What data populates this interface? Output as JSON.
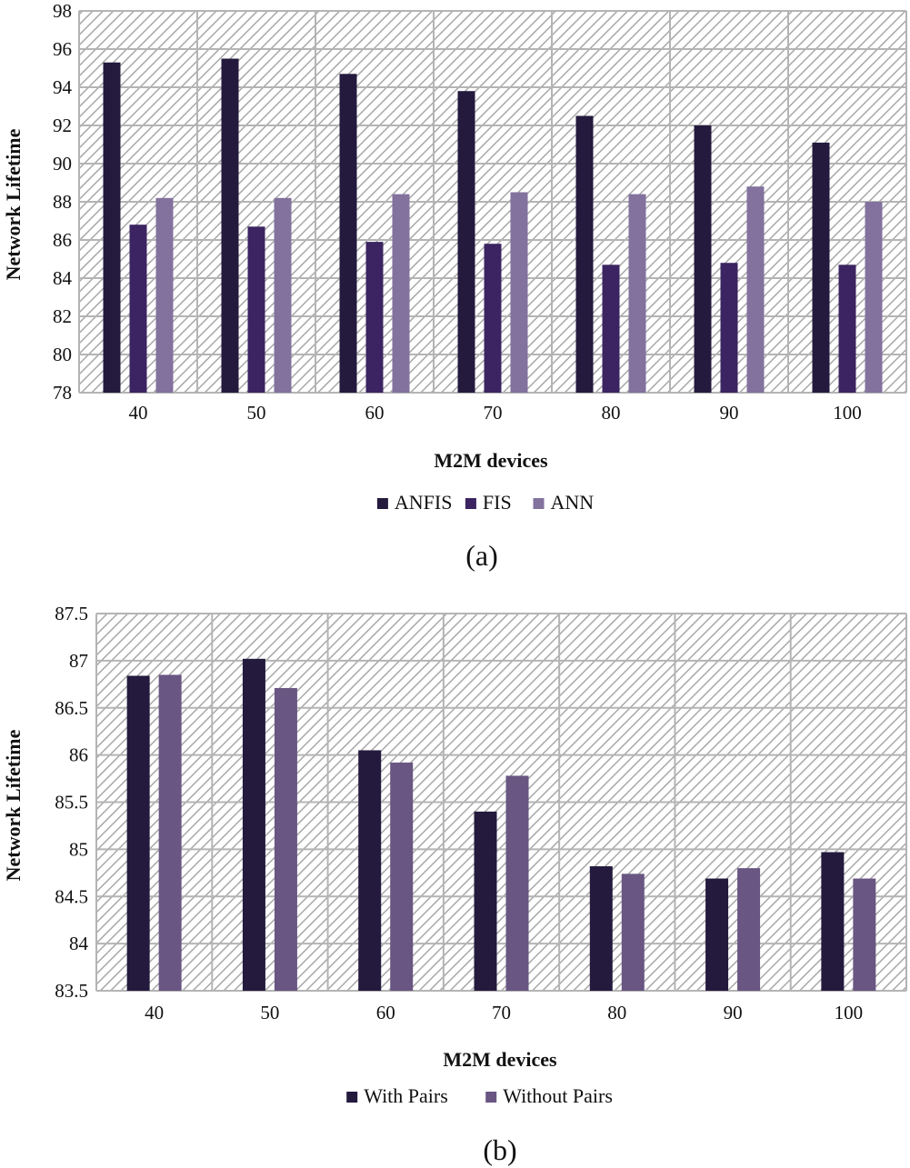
{
  "chart_data": [
    {
      "type": "bar",
      "caption": "(a)",
      "categories": [
        "40",
        "50",
        "60",
        "70",
        "80",
        "90",
        "100"
      ],
      "series": [
        {
          "name": "ANFIS",
          "color": "#241a3d",
          "values": [
            95.3,
            95.5,
            94.7,
            93.8,
            92.5,
            92.0,
            91.1
          ]
        },
        {
          "name": "FIS",
          "color": "#3b2461",
          "values": [
            86.8,
            86.7,
            85.9,
            85.8,
            84.7,
            84.8,
            84.7
          ]
        },
        {
          "name": "ANN",
          "color": "#82729d",
          "values": [
            88.2,
            88.2,
            88.4,
            88.5,
            88.4,
            88.8,
            88.0
          ]
        }
      ],
      "xlabel": "M2M devices",
      "ylabel": "Network Lifetime",
      "ylim": [
        78,
        98
      ],
      "yticks": [
        "78",
        "80",
        "82",
        "84",
        "86",
        "88",
        "90",
        "92",
        "94",
        "96",
        "98"
      ],
      "legend_position": "bottom",
      "grid": true
    },
    {
      "type": "bar",
      "caption": "(b)",
      "categories": [
        "40",
        "50",
        "60",
        "70",
        "80",
        "90",
        "100"
      ],
      "series": [
        {
          "name": "With Pairs",
          "color": "#241a3d",
          "values": [
            86.84,
            87.02,
            86.05,
            85.4,
            84.82,
            84.69,
            84.97
          ]
        },
        {
          "name": "Without Pairs",
          "color": "#695682",
          "values": [
            86.85,
            86.71,
            85.92,
            85.78,
            84.74,
            84.8,
            84.69
          ]
        }
      ],
      "xlabel": "M2M devices",
      "ylabel": "Network Lifetime",
      "ylim": [
        83.5,
        87.5
      ],
      "yticks": [
        "83.5",
        "84",
        "84.5",
        "85",
        "85.5",
        "86",
        "86.5",
        "87",
        "87.5"
      ],
      "legend_position": "bottom",
      "grid": true
    }
  ]
}
